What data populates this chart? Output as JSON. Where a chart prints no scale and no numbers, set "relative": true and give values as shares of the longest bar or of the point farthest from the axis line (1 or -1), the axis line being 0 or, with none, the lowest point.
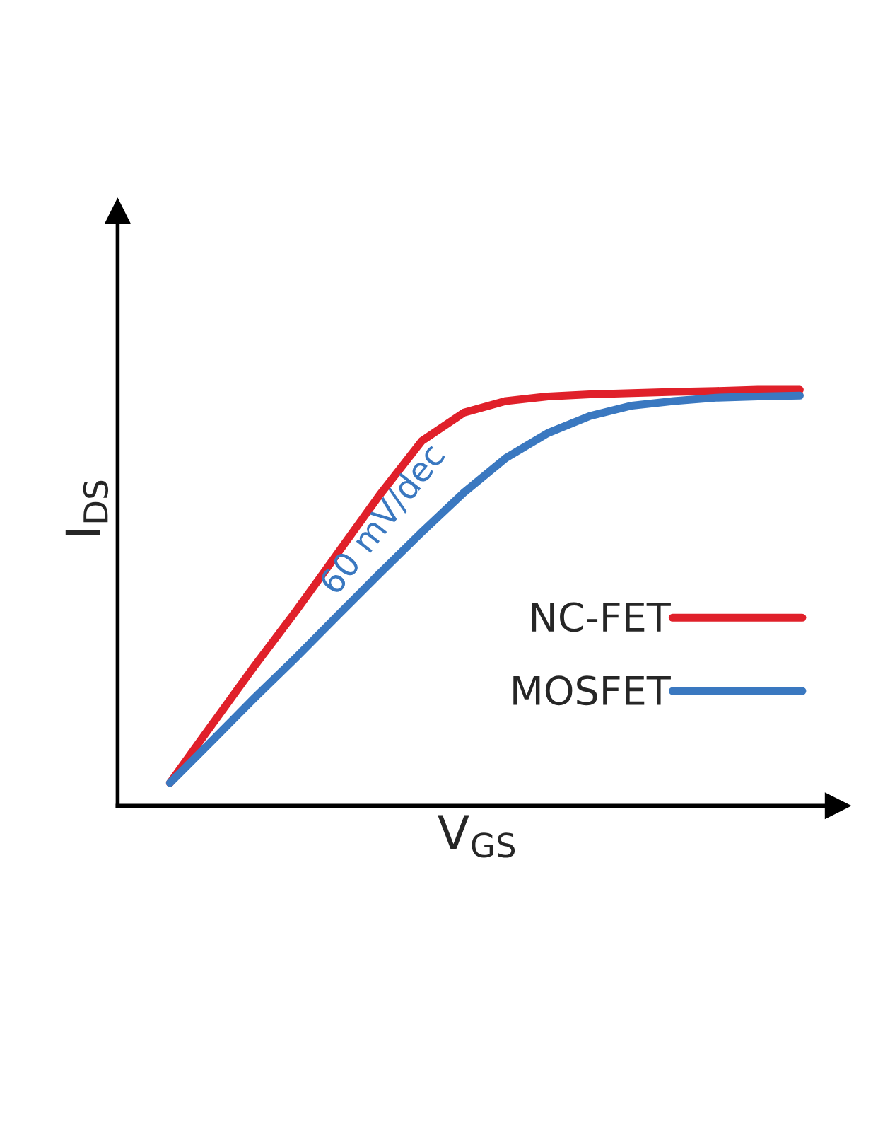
{
  "chart_data": {
    "type": "line",
    "xlabel": "V$_{GS}$",
    "ylabel": "I$_{DS}$",
    "relative": true,
    "legend": "right",
    "marker": "none",
    "line_style": "solid",
    "annotations": [
      "60 mV/dec"
    ],
    "categories": [
      null,
      null,
      null,
      null,
      null,
      null,
      null,
      null,
      null,
      null,
      null,
      null,
      null,
      null,
      null,
      null
    ],
    "series": [
      {
        "name": "NC-FET",
        "color": "#e0202a",
        "values": [
          0.055,
          0.195,
          0.334,
          0.468,
          0.608,
          0.748,
          0.877,
          0.945,
          0.973,
          0.984,
          0.989,
          0.992,
          0.995,
          0.997,
          1.0,
          1.0
        ]
      },
      {
        "name": "MOSFET",
        "color": "#3a78c0",
        "values": [
          0.055,
          0.156,
          0.258,
          0.356,
          0.458,
          0.559,
          0.658,
          0.753,
          0.836,
          0.896,
          0.937,
          0.962,
          0.973,
          0.981,
          0.984,
          0.986
        ]
      }
    ]
  }
}
